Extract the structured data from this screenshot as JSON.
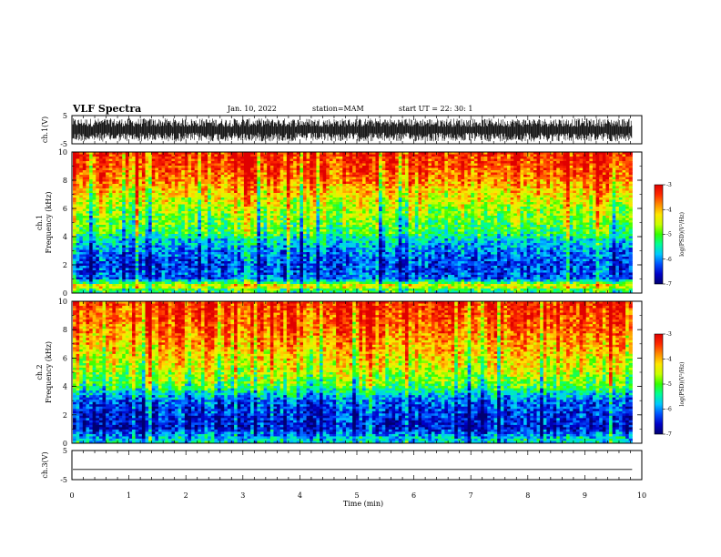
{
  "header": {
    "title": "VLF Spectra",
    "date": "Jan. 10, 2022",
    "station": "station=MAM",
    "start_ut": "start UT =  22: 30: 1"
  },
  "chart_data": [
    {
      "type": "line",
      "panel": "ch1-waveform",
      "ylabel": "ch.1(V)",
      "yticks": [
        "5",
        "-5"
      ],
      "ylim": [
        -5,
        5
      ],
      "xlim": [
        0,
        10
      ],
      "data_extent_min": 9.83,
      "series": [
        {
          "color": "#000000",
          "description_range_v": [
            -4.2,
            4.0
          ]
        }
      ]
    },
    {
      "type": "heatmap",
      "panel": "ch1-spectrogram",
      "ylabel": "ch.1\nFrequency (kHz)",
      "ylabel_line1": "ch.1",
      "ylabel_line2": "Frequency (kHz)",
      "yticks": [
        "0",
        "2",
        "4",
        "6",
        "8",
        "10"
      ],
      "ylim": [
        0,
        10
      ],
      "xlim": [
        0,
        10
      ],
      "data_extent_min": 9.83,
      "log_psd_by_freq_khz": [
        [
          0.2,
          -5.2
        ],
        [
          0.5,
          -4.1
        ],
        [
          1.0,
          -6.1
        ],
        [
          2.0,
          -6.3
        ],
        [
          3.0,
          -6.0
        ],
        [
          3.8,
          -5.6
        ],
        [
          4.3,
          -5.1
        ],
        [
          5.0,
          -4.9
        ],
        [
          6.0,
          -4.6
        ],
        [
          7.0,
          -4.2
        ],
        [
          8.0,
          -3.7
        ],
        [
          9.0,
          -3.4
        ],
        [
          10.0,
          -3.2
        ]
      ],
      "colorbar": {
        "label": "log(PSD)(V²/Hz)",
        "ticks": [
          "-3",
          "-4",
          "-5",
          "-6",
          "-7"
        ],
        "range": [
          -7,
          -3
        ]
      }
    },
    {
      "type": "heatmap",
      "panel": "ch2-spectrogram",
      "ylabel": "ch.2\nFrequency (kHz)",
      "ylabel_line1": "ch.2",
      "ylabel_line2": "Frequency (kHz)",
      "yticks": [
        "0",
        "2",
        "4",
        "6",
        "8",
        "10"
      ],
      "ylim": [
        0,
        10
      ],
      "xlim": [
        0,
        10
      ],
      "data_extent_min": 9.83,
      "log_psd_by_freq_khz": [
        [
          0.3,
          -5.6
        ],
        [
          1.0,
          -6.5
        ],
        [
          2.0,
          -6.4
        ],
        [
          3.0,
          -6.1
        ],
        [
          3.6,
          -5.5
        ],
        [
          4.2,
          -4.9
        ],
        [
          5.0,
          -4.5
        ],
        [
          6.0,
          -4.2
        ],
        [
          7.0,
          -3.9
        ],
        [
          8.0,
          -3.6
        ],
        [
          9.0,
          -3.4
        ],
        [
          10.0,
          -3.2
        ]
      ],
      "colorbar": {
        "label": "log(PSD)(V²/Hz)",
        "ticks": [
          "-3",
          "-4",
          "-5",
          "-6",
          "-7"
        ],
        "range": [
          -7,
          -3
        ]
      }
    },
    {
      "type": "line",
      "panel": "ch3-waveform",
      "ylabel": "ch.3(V)",
      "yticks": [
        "5",
        "-5"
      ],
      "ylim": [
        -5,
        5
      ],
      "xlim": [
        0,
        10
      ],
      "data_extent_min": 9.83,
      "series": [
        {
          "color": "#000000",
          "constant_v": -1.5
        }
      ]
    }
  ],
  "xaxis": {
    "label": "Time (min)",
    "ticks": [
      "0",
      "1",
      "2",
      "3",
      "4",
      "5",
      "6",
      "7",
      "8",
      "9",
      "10"
    ],
    "range": [
      0,
      10
    ]
  },
  "colormap": [
    "#000070",
    "#0000c8",
    "#0050ff",
    "#00c8ff",
    "#00ff96",
    "#32ff00",
    "#c8ff00",
    "#ffe600",
    "#ff8c00",
    "#ff2a00",
    "#e00000"
  ]
}
